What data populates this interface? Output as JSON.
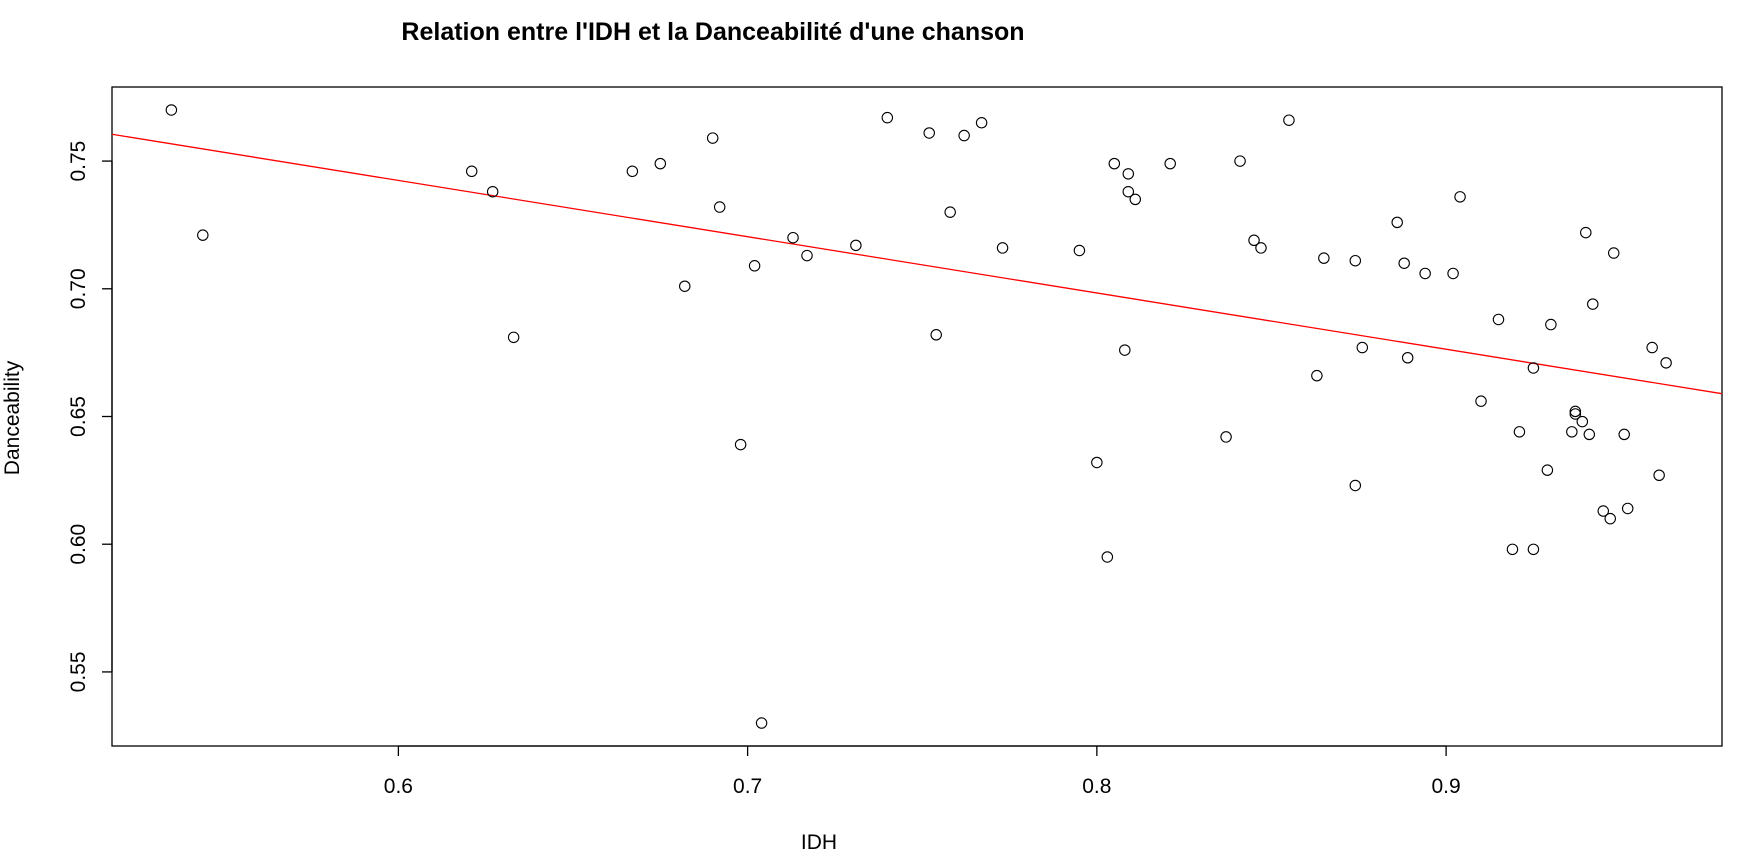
{
  "chart_data": {
    "type": "scatter",
    "title": "Relation entre l'IDH et la Danceabilité d'une chanson",
    "xlabel": "IDH",
    "ylabel": "Danceability",
    "xlim": [
      0.518,
      0.979
    ],
    "ylim": [
      0.521,
      0.779
    ],
    "x_ticks": [
      0.6,
      0.7,
      0.8,
      0.9
    ],
    "x_tick_labels": [
      "0.6",
      "0.7",
      "0.8",
      "0.9"
    ],
    "y_ticks": [
      0.55,
      0.6,
      0.65,
      0.7,
      0.75
    ],
    "y_tick_labels": [
      "0.55",
      "0.60",
      "0.65",
      "0.70",
      "0.75"
    ],
    "grid": false,
    "point_color": "#000000",
    "trend_color": "#ff0000",
    "trend_line": {
      "intercept": 0.8746,
      "slope": -0.2203
    },
    "points": [
      {
        "x": 0.535,
        "y": 0.77
      },
      {
        "x": 0.544,
        "y": 0.721
      },
      {
        "x": 0.621,
        "y": 0.746
      },
      {
        "x": 0.627,
        "y": 0.738
      },
      {
        "x": 0.633,
        "y": 0.681
      },
      {
        "x": 0.667,
        "y": 0.746
      },
      {
        "x": 0.675,
        "y": 0.749
      },
      {
        "x": 0.682,
        "y": 0.701
      },
      {
        "x": 0.69,
        "y": 0.759
      },
      {
        "x": 0.692,
        "y": 0.732
      },
      {
        "x": 0.698,
        "y": 0.639
      },
      {
        "x": 0.702,
        "y": 0.709
      },
      {
        "x": 0.704,
        "y": 0.53
      },
      {
        "x": 0.713,
        "y": 0.72
      },
      {
        "x": 0.717,
        "y": 0.713
      },
      {
        "x": 0.731,
        "y": 0.717
      },
      {
        "x": 0.74,
        "y": 0.767
      },
      {
        "x": 0.752,
        "y": 0.761
      },
      {
        "x": 0.754,
        "y": 0.682
      },
      {
        "x": 0.758,
        "y": 0.73
      },
      {
        "x": 0.762,
        "y": 0.76
      },
      {
        "x": 0.767,
        "y": 0.765
      },
      {
        "x": 0.773,
        "y": 0.716
      },
      {
        "x": 0.795,
        "y": 0.715
      },
      {
        "x": 0.8,
        "y": 0.632
      },
      {
        "x": 0.803,
        "y": 0.595
      },
      {
        "x": 0.805,
        "y": 0.749
      },
      {
        "x": 0.808,
        "y": 0.676
      },
      {
        "x": 0.809,
        "y": 0.745
      },
      {
        "x": 0.809,
        "y": 0.738
      },
      {
        "x": 0.811,
        "y": 0.735
      },
      {
        "x": 0.821,
        "y": 0.749
      },
      {
        "x": 0.837,
        "y": 0.642
      },
      {
        "x": 0.841,
        "y": 0.75
      },
      {
        "x": 0.845,
        "y": 0.719
      },
      {
        "x": 0.847,
        "y": 0.716
      },
      {
        "x": 0.855,
        "y": 0.766
      },
      {
        "x": 0.863,
        "y": 0.666
      },
      {
        "x": 0.865,
        "y": 0.712
      },
      {
        "x": 0.874,
        "y": 0.711
      },
      {
        "x": 0.874,
        "y": 0.623
      },
      {
        "x": 0.876,
        "y": 0.677
      },
      {
        "x": 0.886,
        "y": 0.726
      },
      {
        "x": 0.888,
        "y": 0.71
      },
      {
        "x": 0.889,
        "y": 0.673
      },
      {
        "x": 0.894,
        "y": 0.706
      },
      {
        "x": 0.902,
        "y": 0.706
      },
      {
        "x": 0.904,
        "y": 0.736
      },
      {
        "x": 0.91,
        "y": 0.656
      },
      {
        "x": 0.915,
        "y": 0.688
      },
      {
        "x": 0.919,
        "y": 0.598
      },
      {
        "x": 0.921,
        "y": 0.644
      },
      {
        "x": 0.925,
        "y": 0.669
      },
      {
        "x": 0.925,
        "y": 0.598
      },
      {
        "x": 0.929,
        "y": 0.629
      },
      {
        "x": 0.93,
        "y": 0.686
      },
      {
        "x": 0.936,
        "y": 0.644
      },
      {
        "x": 0.937,
        "y": 0.652
      },
      {
        "x": 0.937,
        "y": 0.651
      },
      {
        "x": 0.939,
        "y": 0.648
      },
      {
        "x": 0.94,
        "y": 0.722
      },
      {
        "x": 0.941,
        "y": 0.643
      },
      {
        "x": 0.942,
        "y": 0.694
      },
      {
        "x": 0.945,
        "y": 0.613
      },
      {
        "x": 0.947,
        "y": 0.61
      },
      {
        "x": 0.948,
        "y": 0.714
      },
      {
        "x": 0.951,
        "y": 0.643
      },
      {
        "x": 0.952,
        "y": 0.614
      },
      {
        "x": 0.959,
        "y": 0.677
      },
      {
        "x": 0.961,
        "y": 0.627
      },
      {
        "x": 0.963,
        "y": 0.671
      }
    ]
  }
}
